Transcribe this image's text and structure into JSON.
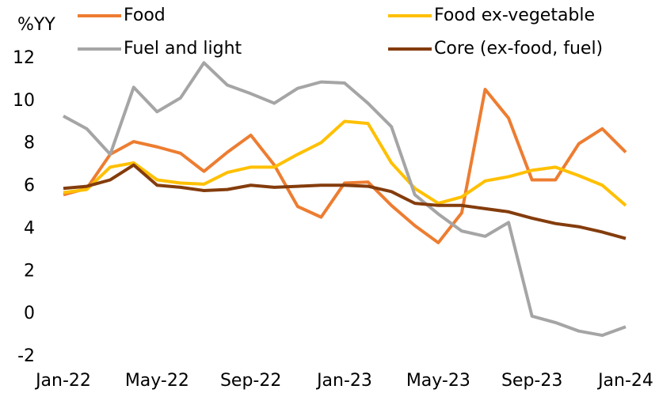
{
  "chart_data": {
    "type": "line",
    "y_axis_label": "%YY",
    "categories": [
      "Jan-22",
      null,
      null,
      null,
      "May-22",
      null,
      null,
      null,
      "Sep-22",
      null,
      null,
      null,
      "Jan-23",
      null,
      null,
      null,
      "May-23",
      null,
      null,
      null,
      "Sep-23",
      null,
      null,
      null,
      "Jan-24"
    ],
    "series": [
      {
        "name": "Food",
        "color": "#ED7D31",
        "values": [
          5.6,
          5.9,
          7.5,
          8.1,
          7.85,
          7.55,
          6.7,
          7.6,
          8.4,
          7.0,
          5.05,
          4.55,
          6.15,
          6.2,
          5.1,
          4.15,
          3.35,
          4.75,
          10.55,
          9.2,
          6.3,
          6.3,
          8.0,
          8.7,
          7.6
        ]
      },
      {
        "name": "Food ex-vegetable",
        "color": "#FFC000",
        "values": [
          5.7,
          5.85,
          6.9,
          7.1,
          6.3,
          6.15,
          6.1,
          6.65,
          6.9,
          6.9,
          7.5,
          8.05,
          9.05,
          8.95,
          7.1,
          5.9,
          5.2,
          5.5,
          6.25,
          6.45,
          6.75,
          6.9,
          6.5,
          6.05,
          5.1
        ]
      },
      {
        "name": "Fuel and light",
        "color": "#A5A5A5",
        "values": [
          9.3,
          8.7,
          7.5,
          10.65,
          9.5,
          10.15,
          11.8,
          10.75,
          10.35,
          9.9,
          10.6,
          10.9,
          10.85,
          9.9,
          8.8,
          5.6,
          4.7,
          3.9,
          3.65,
          4.3,
          -0.1,
          -0.4,
          -0.8,
          -1.0,
          -0.6
        ]
      },
      {
        "name": "Core (ex-food, fuel)",
        "color": "#843C0C",
        "values": [
          5.9,
          6.0,
          6.3,
          7.0,
          6.05,
          5.95,
          5.8,
          5.85,
          6.05,
          5.95,
          6.0,
          6.05,
          6.05,
          6.0,
          5.75,
          5.2,
          5.1,
          5.1,
          4.95,
          4.8,
          4.5,
          4.25,
          4.1,
          3.85,
          3.55
        ]
      }
    ],
    "ylim": [
      -2,
      12
    ],
    "yticks": [
      -2,
      0,
      2,
      4,
      6,
      8,
      10,
      12
    ],
    "grid": false,
    "legend": "top"
  }
}
